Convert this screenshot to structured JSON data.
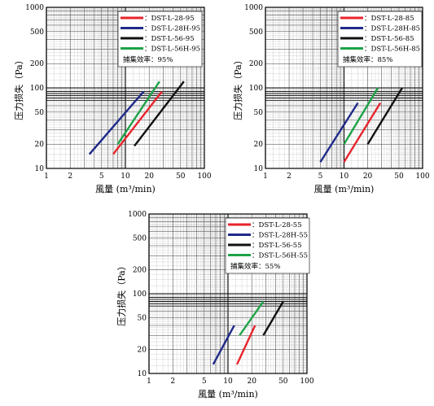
{
  "chart_data": [
    {
      "type": "line",
      "xlabel": "風量 (m³/min)",
      "ylabel": "压力损失（Pa）",
      "xscale": "log",
      "yscale": "log",
      "xlim": [
        1,
        100
      ],
      "ylim": [
        10,
        1000
      ],
      "xticks": [
        "1",
        "2",
        "5",
        "10",
        "20",
        "50",
        "100"
      ],
      "yticks": [
        "10",
        "20",
        "50",
        "100",
        "200",
        "500",
        "1000"
      ],
      "legend_position": "top-right",
      "annotation": "捕集效率：95%",
      "series": [
        {
          "name": "：DST-L-28-95",
          "color": "#e8232b",
          "points": [
            [
              7,
              15
            ],
            [
              29,
              90
            ]
          ]
        },
        {
          "name": "：DST-L-28H-95",
          "color": "#1f2a8a",
          "points": [
            [
              3.5,
              15
            ],
            [
              17,
              90
            ]
          ]
        },
        {
          "name": "：DST-L-56-95",
          "color": "#111111",
          "points": [
            [
              13,
              19
            ],
            [
              55,
              120
            ]
          ]
        },
        {
          "name": "：DST-L-56H-95",
          "color": "#1ea347",
          "points": [
            [
              8,
              20
            ],
            [
              27,
              120
            ]
          ]
        }
      ]
    },
    {
      "type": "line",
      "xlabel": "風量 (m³/min)",
      "ylabel": "压力损失（Pa）",
      "xscale": "log",
      "yscale": "log",
      "xlim": [
        1,
        100
      ],
      "ylim": [
        10,
        1000
      ],
      "xticks": [
        "1",
        "2",
        "5",
        "10",
        "20",
        "50",
        "100"
      ],
      "yticks": [
        "10",
        "20",
        "50",
        "100",
        "200",
        "500",
        "1000"
      ],
      "legend_position": "top-right",
      "annotation": "捕集效率：85%",
      "series": [
        {
          "name": "：DST-L-28-85",
          "color": "#e8232b",
          "points": [
            [
              10,
              12
            ],
            [
              29,
              65
            ]
          ]
        },
        {
          "name": "：DST-L-28H-85",
          "color": "#1f2a8a",
          "points": [
            [
              5,
              12
            ],
            [
              15,
              65
            ]
          ]
        },
        {
          "name": "：DST-L-56-85",
          "color": "#111111",
          "points": [
            [
              20,
              20
            ],
            [
              55,
              100
            ]
          ]
        },
        {
          "name": "：DST-L-56H-85",
          "color": "#1ea347",
          "points": [
            [
              10,
              20
            ],
            [
              27,
              100
            ]
          ]
        }
      ]
    },
    {
      "type": "line",
      "xlabel": "風量 (m³/min)",
      "ylabel": "压力损失（Pa）",
      "xscale": "log",
      "yscale": "log",
      "xlim": [
        1,
        100
      ],
      "ylim": [
        10,
        1000
      ],
      "xticks": [
        "1",
        "2",
        "5",
        "10",
        "20",
        "50",
        "100"
      ],
      "yticks": [
        "10",
        "20",
        "50",
        "100",
        "200",
        "500",
        "1000"
      ],
      "legend_position": "top-right",
      "annotation": "捕集效率：55%",
      "series": [
        {
          "name": "：DST-L-28-55",
          "color": "#e8232b",
          "points": [
            [
              13,
              13
            ],
            [
              22,
              40
            ]
          ]
        },
        {
          "name": "：DST-L-28H-55",
          "color": "#1f2a8a",
          "points": [
            [
              6.5,
              13
            ],
            [
              12,
              40
            ]
          ]
        },
        {
          "name": "：DST-L-56-55",
          "color": "#111111",
          "points": [
            [
              28,
              30
            ],
            [
              50,
              80
            ]
          ]
        },
        {
          "name": "：DST-L-56H-55",
          "color": "#1ea347",
          "points": [
            [
              14,
              30
            ],
            [
              28,
              80
            ]
          ]
        }
      ]
    }
  ]
}
